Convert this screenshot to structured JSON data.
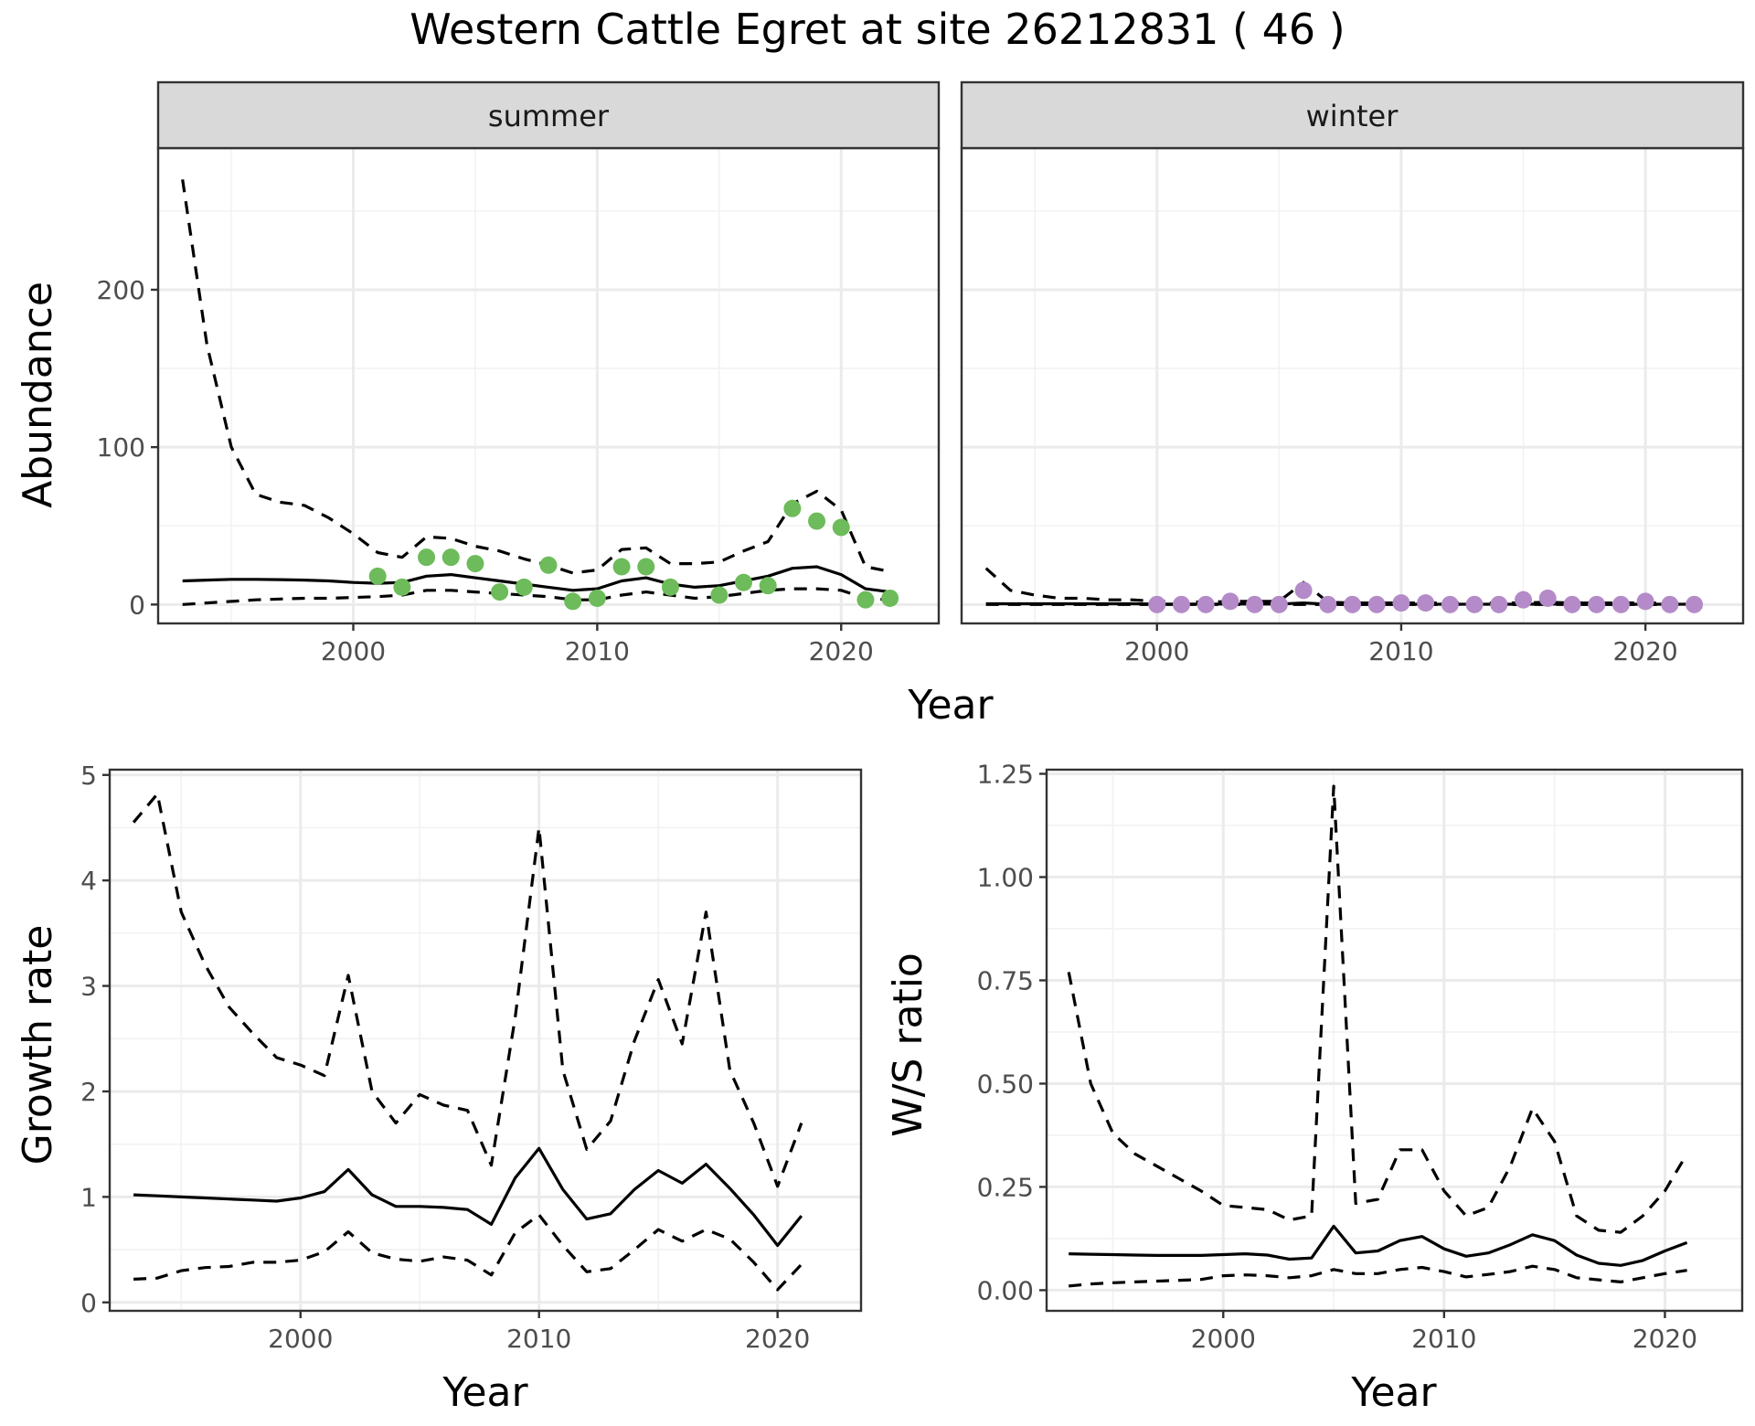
{
  "title": "Western Cattle Egret at site 26212831 ( 46 )",
  "colors": {
    "summer_points": "#6dbb5a",
    "winter_points": "#b48bc8",
    "lines": "#000000"
  },
  "chart_data": [
    {
      "id": "abundance-summer",
      "type": "line",
      "facet": "summer",
      "xlabel": "",
      "ylabel": "Abundance",
      "xlim": [
        1992,
        2024
      ],
      "ylim": [
        -12,
        290
      ],
      "xticks": [
        2000,
        2010,
        2020
      ],
      "yticks": [
        0,
        100,
        200
      ],
      "grid": true,
      "x": [
        1993,
        1994,
        1995,
        1996,
        1997,
        1998,
        1999,
        2000,
        2001,
        2002,
        2003,
        2004,
        2005,
        2006,
        2007,
        2008,
        2009,
        2010,
        2011,
        2012,
        2013,
        2014,
        2015,
        2016,
        2017,
        2018,
        2019,
        2020,
        2021,
        2022
      ],
      "series": [
        {
          "role": "upper",
          "values": [
            270,
            165,
            100,
            70,
            65,
            63,
            55,
            45,
            33,
            30,
            43,
            42,
            37,
            34,
            29,
            25,
            20,
            22,
            35,
            36,
            26,
            26,
            27,
            34,
            40,
            64,
            72,
            60,
            24,
            21
          ]
        },
        {
          "role": "mean",
          "values": [
            15,
            15.5,
            16,
            16,
            15.8,
            15.5,
            15,
            14,
            13.5,
            14,
            18,
            19,
            17,
            15,
            13,
            11,
            9,
            10,
            15,
            17,
            13,
            11,
            12,
            15,
            18,
            23,
            24,
            19,
            10,
            8
          ]
        },
        {
          "role": "lower",
          "values": [
            0,
            1,
            2,
            3,
            3.5,
            4,
            4,
            4.5,
            5,
            6,
            9,
            9,
            8,
            7,
            6,
            5,
            3,
            3,
            6,
            8,
            6,
            4,
            5,
            7,
            9,
            10,
            10,
            9,
            4,
            3
          ]
        }
      ],
      "points": [
        {
          "x": 2001,
          "y": 18
        },
        {
          "x": 2002,
          "y": 11
        },
        {
          "x": 2003,
          "y": 30
        },
        {
          "x": 2004,
          "y": 30
        },
        {
          "x": 2005,
          "y": 26
        },
        {
          "x": 2006,
          "y": 8
        },
        {
          "x": 2007,
          "y": 11
        },
        {
          "x": 2008,
          "y": 25
        },
        {
          "x": 2009,
          "y": 2
        },
        {
          "x": 2010,
          "y": 4
        },
        {
          "x": 2011,
          "y": 24
        },
        {
          "x": 2012,
          "y": 24
        },
        {
          "x": 2013,
          "y": 11
        },
        {
          "x": 2015,
          "y": 6
        },
        {
          "x": 2016,
          "y": 14
        },
        {
          "x": 2017,
          "y": 12
        },
        {
          "x": 2018,
          "y": 61
        },
        {
          "x": 2019,
          "y": 53
        },
        {
          "x": 2020,
          "y": 49
        },
        {
          "x": 2021,
          "y": 3
        },
        {
          "x": 2022,
          "y": 4
        }
      ]
    },
    {
      "id": "abundance-winter",
      "type": "line",
      "facet": "winter",
      "xlabel": "",
      "ylabel": "",
      "xlim": [
        1992,
        2024
      ],
      "ylim": [
        -12,
        290
      ],
      "xticks": [
        2000,
        2010,
        2020
      ],
      "yticks": [
        0,
        100,
        200
      ],
      "grid": true,
      "x": [
        1993,
        1994,
        1995,
        1996,
        1997,
        1998,
        1999,
        2000,
        2001,
        2002,
        2003,
        2004,
        2005,
        2006,
        2007,
        2008,
        2009,
        2010,
        2011,
        2012,
        2013,
        2014,
        2015,
        2016,
        2017,
        2018,
        2019,
        2020,
        2021,
        2022
      ],
      "series": [
        {
          "role": "upper",
          "values": [
            23,
            9,
            6,
            4,
            4,
            3,
            3,
            2,
            2,
            1.5,
            2,
            2,
            2,
            14,
            1.5,
            1,
            1,
            1,
            1,
            1,
            1,
            1,
            1,
            1.5,
            1,
            1,
            1,
            1,
            1,
            1
          ]
        },
        {
          "role": "mean",
          "values": [
            0.5,
            0.5,
            0.5,
            0.5,
            0.5,
            0.5,
            0.5,
            0.3,
            0.3,
            0.3,
            0.3,
            0.3,
            0.3,
            1,
            0.2,
            0.2,
            0.2,
            0.2,
            0.2,
            0.2,
            0.2,
            0.2,
            0.2,
            0.3,
            0.2,
            0.2,
            0.2,
            0.2,
            0.2,
            0.2
          ]
        },
        {
          "role": "lower",
          "values": [
            0,
            0,
            0,
            0,
            0,
            0,
            0,
            0,
            0,
            0,
            0,
            0,
            0,
            0,
            0,
            0,
            0,
            0,
            0,
            0,
            0,
            0,
            0,
            0,
            0,
            0,
            0,
            0,
            0,
            0
          ]
        }
      ],
      "points": [
        {
          "x": 2000,
          "y": 0
        },
        {
          "x": 2001,
          "y": 0
        },
        {
          "x": 2002,
          "y": 0
        },
        {
          "x": 2003,
          "y": 2
        },
        {
          "x": 2004,
          "y": 0
        },
        {
          "x": 2005,
          "y": 0
        },
        {
          "x": 2006,
          "y": 9
        },
        {
          "x": 2007,
          "y": 0
        },
        {
          "x": 2008,
          "y": 0
        },
        {
          "x": 2009,
          "y": 0
        },
        {
          "x": 2010,
          "y": 1
        },
        {
          "x": 2011,
          "y": 1
        },
        {
          "x": 2012,
          "y": 0
        },
        {
          "x": 2013,
          "y": 0
        },
        {
          "x": 2014,
          "y": 0
        },
        {
          "x": 2015,
          "y": 3
        },
        {
          "x": 2016,
          "y": 4
        },
        {
          "x": 2017,
          "y": 0
        },
        {
          "x": 2018,
          "y": 0
        },
        {
          "x": 2019,
          "y": 0
        },
        {
          "x": 2020,
          "y": 2
        },
        {
          "x": 2021,
          "y": 0
        },
        {
          "x": 2022,
          "y": 0
        }
      ]
    },
    {
      "id": "growth-rate",
      "type": "line",
      "xlabel": "Year",
      "ylabel": "Growth rate",
      "xlim": [
        1992,
        2023.5
      ],
      "ylim": [
        -0.08,
        5.05
      ],
      "xticks": [
        2000,
        2010,
        2020
      ],
      "yticks": [
        0,
        1,
        2,
        3,
        4,
        5
      ],
      "grid": true,
      "x": [
        1993,
        1994,
        1995,
        1996,
        1997,
        1998,
        1999,
        2000,
        2001,
        2002,
        2003,
        2004,
        2005,
        2006,
        2007,
        2008,
        2009,
        2010,
        2011,
        2012,
        2013,
        2014,
        2015,
        2016,
        2017,
        2018,
        2019,
        2020,
        2021
      ],
      "series": [
        {
          "role": "upper",
          "values": [
            4.55,
            4.82,
            3.7,
            3.2,
            2.8,
            2.55,
            2.32,
            2.25,
            2.15,
            3.1,
            2.0,
            1.7,
            1.97,
            1.87,
            1.82,
            1.3,
            2.7,
            4.5,
            2.2,
            1.45,
            1.72,
            2.48,
            3.06,
            2.45,
            3.7,
            2.2,
            1.7,
            1.1,
            1.7
          ]
        },
        {
          "role": "mean",
          "values": [
            1.02,
            1.01,
            1.0,
            0.99,
            0.98,
            0.97,
            0.96,
            0.99,
            1.05,
            1.26,
            1.02,
            0.91,
            0.91,
            0.9,
            0.88,
            0.74,
            1.18,
            1.46,
            1.07,
            0.79,
            0.84,
            1.07,
            1.25,
            1.13,
            1.31,
            1.08,
            0.83,
            0.54,
            0.82
          ]
        },
        {
          "role": "lower",
          "values": [
            0.22,
            0.23,
            0.3,
            0.33,
            0.34,
            0.38,
            0.38,
            0.4,
            0.48,
            0.67,
            0.47,
            0.41,
            0.39,
            0.43,
            0.4,
            0.26,
            0.66,
            0.83,
            0.54,
            0.29,
            0.32,
            0.5,
            0.69,
            0.58,
            0.69,
            0.6,
            0.38,
            0.12,
            0.36
          ]
        }
      ]
    },
    {
      "id": "ws-ratio",
      "type": "line",
      "xlabel": "Year",
      "ylabel": "W/S ratio",
      "xlim": [
        1992,
        2023.5
      ],
      "ylim": [
        -0.05,
        1.26
      ],
      "xticks": [
        2000,
        2010,
        2020
      ],
      "yticks": [
        0.0,
        0.25,
        0.5,
        0.75,
        1.0,
        1.25
      ],
      "ytick_labels": [
        "0.00",
        "0.25",
        "0.50",
        "0.75",
        "1.00",
        "1.25"
      ],
      "grid": true,
      "x": [
        1993,
        1994,
        1995,
        1996,
        1997,
        1998,
        1999,
        2000,
        2001,
        2002,
        2003,
        2004,
        2005,
        2006,
        2007,
        2008,
        2009,
        2010,
        2011,
        2012,
        2013,
        2014,
        2015,
        2016,
        2017,
        2018,
        2019,
        2020,
        2021
      ],
      "series": [
        {
          "role": "upper",
          "values": [
            0.77,
            0.5,
            0.38,
            0.33,
            0.3,
            0.27,
            0.24,
            0.205,
            0.2,
            0.195,
            0.17,
            0.18,
            1.22,
            0.21,
            0.22,
            0.34,
            0.34,
            0.24,
            0.18,
            0.2,
            0.3,
            0.44,
            0.36,
            0.18,
            0.145,
            0.14,
            0.18,
            0.24,
            0.33
          ]
        },
        {
          "role": "mean",
          "values": [
            0.088,
            0.087,
            0.086,
            0.085,
            0.084,
            0.084,
            0.084,
            0.086,
            0.088,
            0.085,
            0.075,
            0.078,
            0.155,
            0.09,
            0.095,
            0.12,
            0.13,
            0.1,
            0.082,
            0.09,
            0.11,
            0.134,
            0.12,
            0.085,
            0.065,
            0.06,
            0.072,
            0.095,
            0.115
          ]
        },
        {
          "role": "lower",
          "values": [
            0.01,
            0.015,
            0.018,
            0.02,
            0.022,
            0.024,
            0.026,
            0.035,
            0.037,
            0.035,
            0.03,
            0.035,
            0.05,
            0.04,
            0.04,
            0.05,
            0.055,
            0.045,
            0.032,
            0.038,
            0.045,
            0.058,
            0.05,
            0.03,
            0.025,
            0.02,
            0.03,
            0.04,
            0.048
          ]
        }
      ]
    }
  ]
}
